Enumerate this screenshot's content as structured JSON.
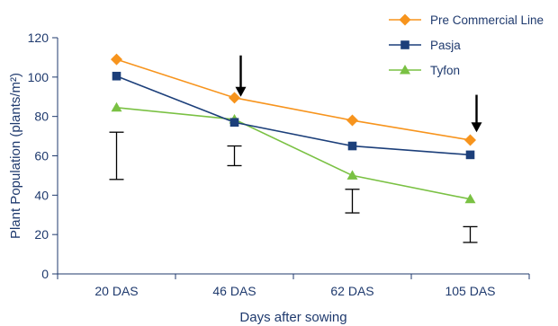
{
  "chart_data": {
    "type": "line",
    "title": "",
    "xlabel": "Days after sowing",
    "ylabel": "Plant Population (plants/m²)",
    "categories": [
      "20 DAS",
      "46 DAS",
      "62 DAS",
      "105 DAS"
    ],
    "ylim": [
      0,
      120
    ],
    "yticks": [
      0,
      20,
      40,
      60,
      80,
      100,
      120
    ],
    "grid": false,
    "legend_position": "top-right",
    "series": [
      {
        "name": "Pre Commercial Line",
        "values": [
          109,
          89.5,
          78,
          68
        ],
        "color": "#f7941d",
        "marker": "diamond"
      },
      {
        "name": "Pasja",
        "values": [
          100.5,
          77,
          65,
          60.5
        ],
        "color": "#1c3f7a",
        "marker": "square"
      },
      {
        "name": "Tyfon",
        "values": [
          84.5,
          78.5,
          50,
          38
        ],
        "color": "#7ac143",
        "marker": "triangle"
      }
    ],
    "error_bars": [
      {
        "category": "20 DAS",
        "low": 48,
        "high": 72
      },
      {
        "category": "46 DAS",
        "low": 55,
        "high": 65
      },
      {
        "category": "62 DAS",
        "low": 31,
        "high": 43
      },
      {
        "category": "105 DAS",
        "low": 16,
        "high": 24
      }
    ],
    "arrows": [
      {
        "category": "46 DAS",
        "from": 111,
        "to": 90
      },
      {
        "category": "105 DAS",
        "from": 91,
        "to": 72
      }
    ],
    "colors": {
      "axis": "#1f3a6e",
      "text": "#1f3a6e",
      "annotation": "#000000"
    }
  }
}
